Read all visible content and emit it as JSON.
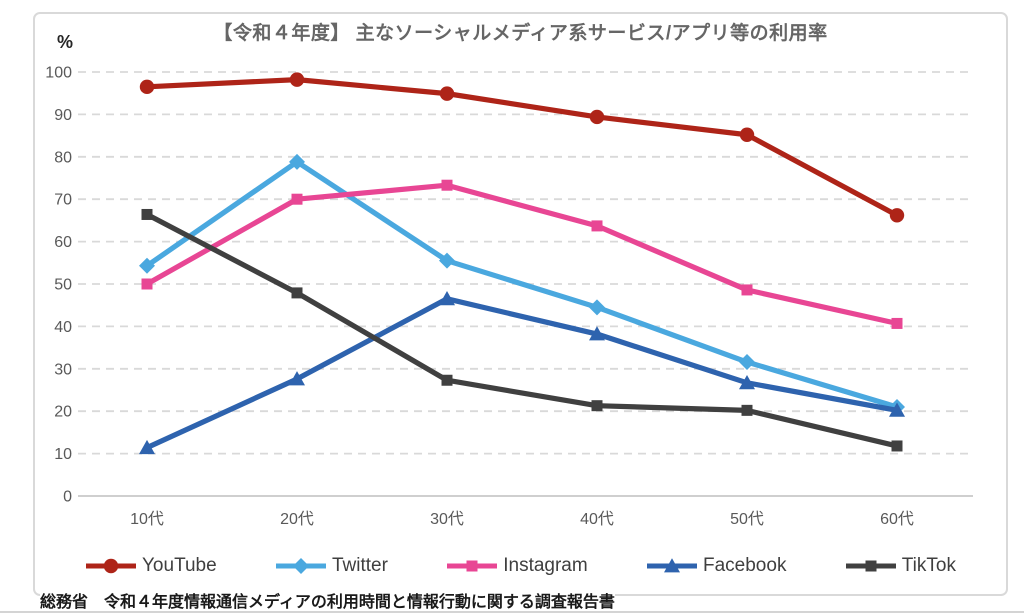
{
  "page": {
    "source": "総務省　令和４年度情報通信メディアの利用時間と情報行動に関する調査報告書"
  },
  "chart_data": {
    "type": "line",
    "title": "【令和４年度】 主なソーシャルメディア系サービス/アプリ等の利用率",
    "ylabel": "%",
    "categories": [
      "10代",
      "20代",
      "30代",
      "40代",
      "50代",
      "60代"
    ],
    "series": [
      {
        "name": "YouTube",
        "color": "#AE2418",
        "marker": "circle",
        "values": [
          96.5,
          98.2,
          94.9,
          89.4,
          85.2,
          66.2
        ]
      },
      {
        "name": "Twitter",
        "color": "#4AA8DF",
        "marker": "diamond",
        "values": [
          54.3,
          78.8,
          55.5,
          44.5,
          31.6,
          21.0
        ]
      },
      {
        "name": "Instagram",
        "color": "#E84694",
        "marker": "square",
        "values": [
          50.0,
          70.0,
          73.3,
          63.7,
          48.6,
          40.7
        ]
      },
      {
        "name": "Facebook",
        "color": "#2E63AE",
        "marker": "triangle",
        "values": [
          11.4,
          27.6,
          46.5,
          38.2,
          26.7,
          20.2
        ]
      },
      {
        "name": "TikTok",
        "color": "#404040",
        "marker": "square",
        "values": [
          66.4,
          47.9,
          27.3,
          21.3,
          20.2,
          11.8
        ]
      }
    ],
    "ylim": [
      0,
      100
    ],
    "ytick_step": 10,
    "grid": "horizontal-dashed",
    "grid_color": "#D9D9D9",
    "axis_color": "#BFBFBF",
    "tick_label_color": "#595959",
    "legend_position": "bottom"
  }
}
